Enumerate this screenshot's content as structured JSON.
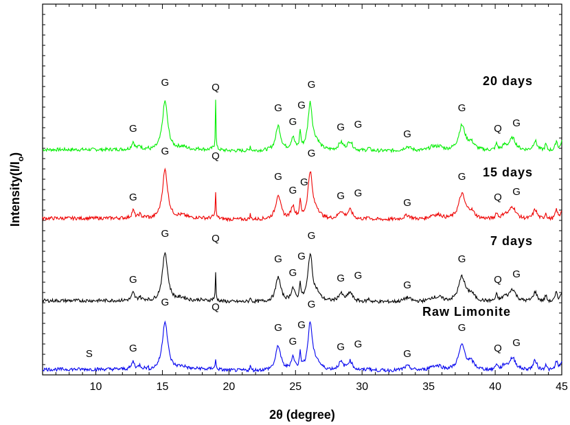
{
  "chart_data": {
    "type": "line",
    "xlabel": "2θ (degree)",
    "ylabel": "Intensity(I/I",
    "ylabel_sub": "o",
    "ylabel_tail": ")",
    "xlim": [
      6,
      45
    ],
    "x_ticks": [
      10,
      15,
      20,
      25,
      30,
      35,
      40,
      45
    ],
    "y_ticks_shown": false,
    "grid": false,
    "legend": "none",
    "series": [
      {
        "name": "20 days",
        "color": "#00ee00",
        "baseline_level": 3.2,
        "peaks": [
          {
            "label": "G",
            "x": 12.8
          },
          {
            "label": "G",
            "x": 15.2
          },
          {
            "label": "Q",
            "x": 19.0
          },
          {
            "label": "G",
            "x": 23.7
          },
          {
            "label": "G",
            "x": 24.8
          },
          {
            "label": "G",
            "x": 25.3
          },
          {
            "label": "G",
            "x": 26.1
          },
          {
            "label": "G",
            "x": 28.4
          },
          {
            "label": "G",
            "x": 29.1
          },
          {
            "label": "G",
            "x": 33.4
          },
          {
            "label": "G",
            "x": 37.5
          },
          {
            "label": "Q",
            "x": 40.2
          },
          {
            "label": "G",
            "x": 41.3
          }
        ]
      },
      {
        "name": "15 days",
        "color": "#ee0000",
        "baseline_level": 2.2,
        "peaks": [
          {
            "label": "G",
            "x": 12.8
          },
          {
            "label": "G",
            "x": 15.2
          },
          {
            "label": "Q",
            "x": 19.0
          },
          {
            "label": "G",
            "x": 23.7
          },
          {
            "label": "G",
            "x": 24.8
          },
          {
            "label": "G",
            "x": 25.5
          },
          {
            "label": "G",
            "x": 26.1
          },
          {
            "label": "G",
            "x": 28.4
          },
          {
            "label": "G",
            "x": 29.1
          },
          {
            "label": "G",
            "x": 33.4
          },
          {
            "label": "G",
            "x": 37.5
          },
          {
            "label": "Q",
            "x": 40.2
          },
          {
            "label": "G",
            "x": 41.3
          }
        ]
      },
      {
        "name": "7 days",
        "color": "#000000",
        "baseline_level": 1.0,
        "peaks": [
          {
            "label": "G",
            "x": 12.8
          },
          {
            "label": "G",
            "x": 15.2
          },
          {
            "label": "Q",
            "x": 19.0
          },
          {
            "label": "G",
            "x": 23.7
          },
          {
            "label": "G",
            "x": 24.8
          },
          {
            "label": "G",
            "x": 25.3
          },
          {
            "label": "G",
            "x": 26.1
          },
          {
            "label": "G",
            "x": 28.4
          },
          {
            "label": "G",
            "x": 29.1
          },
          {
            "label": "G",
            "x": 33.4
          },
          {
            "label": "G",
            "x": 37.5
          },
          {
            "label": "Q",
            "x": 40.2
          },
          {
            "label": "G",
            "x": 41.3
          }
        ]
      },
      {
        "name": "Raw Limonite",
        "color": "#0000ee",
        "baseline_level": 0.0,
        "peaks": [
          {
            "label": "S",
            "x": 9.5
          },
          {
            "label": "G",
            "x": 12.8
          },
          {
            "label": "G",
            "x": 15.2
          },
          {
            "label": "Q",
            "x": 19.0
          },
          {
            "label": "G",
            "x": 23.7
          },
          {
            "label": "G",
            "x": 24.8
          },
          {
            "label": "G",
            "x": 25.3
          },
          {
            "label": "G",
            "x": 26.1
          },
          {
            "label": "G",
            "x": 28.4
          },
          {
            "label": "G",
            "x": 29.1
          },
          {
            "label": "G",
            "x": 33.4
          },
          {
            "label": "G",
            "x": 37.5
          },
          {
            "label": "Q",
            "x": 40.2
          },
          {
            "label": "G",
            "x": 41.3
          }
        ]
      }
    ]
  }
}
